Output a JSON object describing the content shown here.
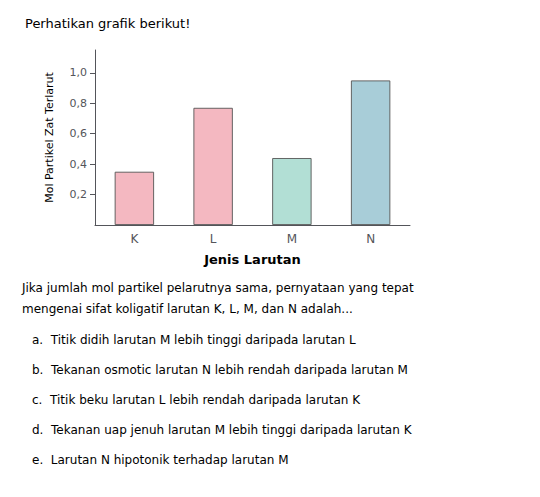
{
  "chart_data": {
    "type": "bar",
    "title": "Perhatikan grafik berikut!",
    "categories": [
      "K",
      "L",
      "M",
      "N"
    ],
    "values": [
      0.35,
      0.77,
      0.44,
      0.95
    ],
    "colors": [
      "#f4b8c1",
      "#f4b8c1",
      "#b2dfd5",
      "#a8cdd8"
    ],
    "xlabel": "Jenis Larutan",
    "ylabel": "Mol Partikel Zat Terlarut",
    "ylim": [
      0,
      1.15
    ],
    "yticks": [
      {
        "value": 0.2,
        "label": "0,2"
      },
      {
        "value": 0.4,
        "label": "0,4"
      },
      {
        "value": 0.6,
        "label": "0,6"
      },
      {
        "value": 0.8,
        "label": "0,8"
      },
      {
        "value": 1.0,
        "label": "1,0"
      }
    ],
    "grid": false,
    "annotations": [
      "Jika jumlah mol partikel pelarutnya sama, pernyataan yang tepat",
      "mengenai sifat koligatif larutan K, L, M, dan N adalah...",
      "a.  Titik didih larutan M lebih tinggi daripada larutan L",
      "b.  Tekanan osmotic larutan N lebih rendah daripada larutan M",
      "c.  Titik beku larutan L lebih rendah daripada larutan K",
      "d.  Tekanan uap jenuh larutan M lebih tinggi daripada larutan K",
      "e.  Larutan N hipotonik terhadap larutan M"
    ]
  }
}
